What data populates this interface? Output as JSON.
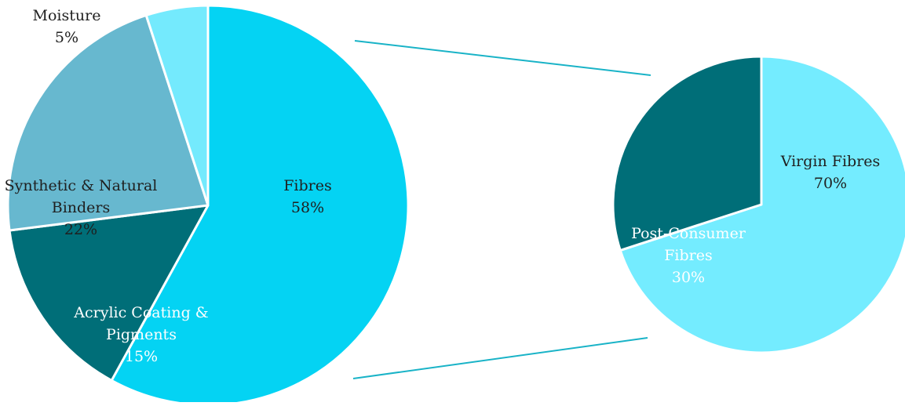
{
  "chart_data": [
    {
      "type": "pie",
      "slices": [
        {
          "label_lines": [
            "Fibres"
          ],
          "value_label": "58%",
          "value": 58,
          "color": "#04d3f3",
          "text_color": "#1f1f1f"
        },
        {
          "label_lines": [
            "Acrylic Coating &",
            "Pigments"
          ],
          "value_label": "15%",
          "value": 15,
          "color": "#006e78",
          "text_color": "#ffffff"
        },
        {
          "label_lines": [
            "Synthetic & Natural",
            "Binders"
          ],
          "value_label": "22%",
          "value": 22,
          "color": "#67b8cf",
          "text_color": "#1f1f1f"
        },
        {
          "label_lines": [
            "Moisture"
          ],
          "value_label": "5%",
          "value": 5,
          "color": "#74eafd",
          "text_color": "#1f1f1f"
        }
      ]
    },
    {
      "type": "pie",
      "slices": [
        {
          "label_lines": [
            "Virgin Fibres"
          ],
          "value_label": "70%",
          "value": 70,
          "color": "#74ecff",
          "text_color": "#1f1f1f"
        },
        {
          "label_lines": [
            "Post-Consumer",
            "Fibres"
          ],
          "value_label": "30%",
          "value": 30,
          "color": "#006e78",
          "text_color": "#ffffff"
        }
      ]
    }
  ],
  "colors": {
    "connector": "#19b3c7",
    "slice_border": "#ffffff",
    "background": "#ffffff"
  }
}
